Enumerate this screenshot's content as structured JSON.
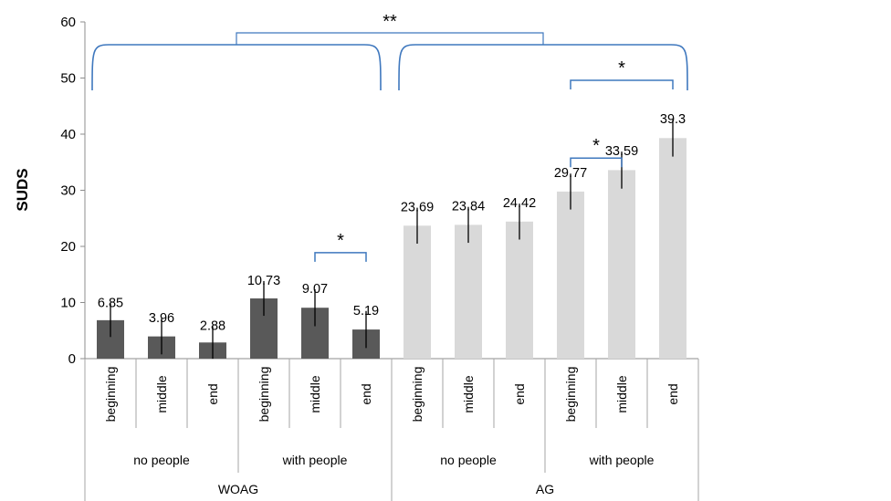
{
  "chart_data": {
    "type": "bar",
    "ylabel": "SUDS",
    "ylim": [
      0,
      60
    ],
    "yticks": [
      0,
      10,
      20,
      30,
      40,
      50,
      60
    ],
    "grid": false,
    "legend": "none",
    "bars": [
      {
        "group": "WOAG",
        "subgroup": "no people",
        "label": "beginning",
        "value": 6.85,
        "value_label": "6.85",
        "err": 3.0
      },
      {
        "group": "WOAG",
        "subgroup": "no people",
        "label": "middle",
        "value": 3.96,
        "value_label": "3.96",
        "err": 3.2
      },
      {
        "group": "WOAG",
        "subgroup": "no people",
        "label": "end",
        "value": 2.88,
        "value_label": "2.88",
        "err": 2.9
      },
      {
        "group": "WOAG",
        "subgroup": "with people",
        "label": "beginning",
        "value": 10.73,
        "value_label": "10.73",
        "err": 3.1
      },
      {
        "group": "WOAG",
        "subgroup": "with people",
        "label": "middle",
        "value": 9.07,
        "value_label": "9.07",
        "err": 3.3
      },
      {
        "group": "WOAG",
        "subgroup": "with people",
        "label": "end",
        "value": 5.19,
        "value_label": "5.19",
        "err": 3.3
      },
      {
        "group": "AG",
        "subgroup": "no people",
        "label": "beginning",
        "value": 23.69,
        "value_label": "23.69",
        "err": 3.2
      },
      {
        "group": "AG",
        "subgroup": "no people",
        "label": "middle",
        "value": 23.84,
        "value_label": "23.84",
        "err": 3.2
      },
      {
        "group": "AG",
        "subgroup": "no people",
        "label": "end",
        "value": 24.42,
        "value_label": "24.42",
        "err": 3.2
      },
      {
        "group": "AG",
        "subgroup": "with people",
        "label": "beginning",
        "value": 29.77,
        "value_label": "29.77",
        "err": 3.2
      },
      {
        "group": "AG",
        "subgroup": "with people",
        "label": "middle",
        "value": 33.59,
        "value_label": "33.59",
        "err": 3.3
      },
      {
        "group": "AG",
        "subgroup": "with people",
        "label": "end",
        "value": 39.3,
        "value_label": "39.3",
        "err": 3.3
      }
    ],
    "subgroups": [
      {
        "label": "no people",
        "group": "WOAG"
      },
      {
        "label": "with people",
        "group": "WOAG"
      },
      {
        "label": "no people",
        "group": "AG"
      },
      {
        "label": "with people",
        "group": "AG"
      }
    ],
    "groups": [
      {
        "label": "WOAG",
        "color": "#595959"
      },
      {
        "label": "AG",
        "color": "#d9d9d9"
      }
    ],
    "annotations": [
      {
        "type": "group-bracket",
        "group": "WOAG"
      },
      {
        "type": "group-bracket",
        "group": "AG"
      },
      {
        "type": "between-groups",
        "text": "**"
      },
      {
        "type": "pair",
        "from": 4,
        "to": 5,
        "text": "*"
      },
      {
        "type": "pair",
        "from": 9,
        "to": 10,
        "text": "*"
      },
      {
        "type": "pair",
        "from": 9,
        "to": 11,
        "text": "*"
      }
    ],
    "bracket_color": "#3f78be"
  }
}
